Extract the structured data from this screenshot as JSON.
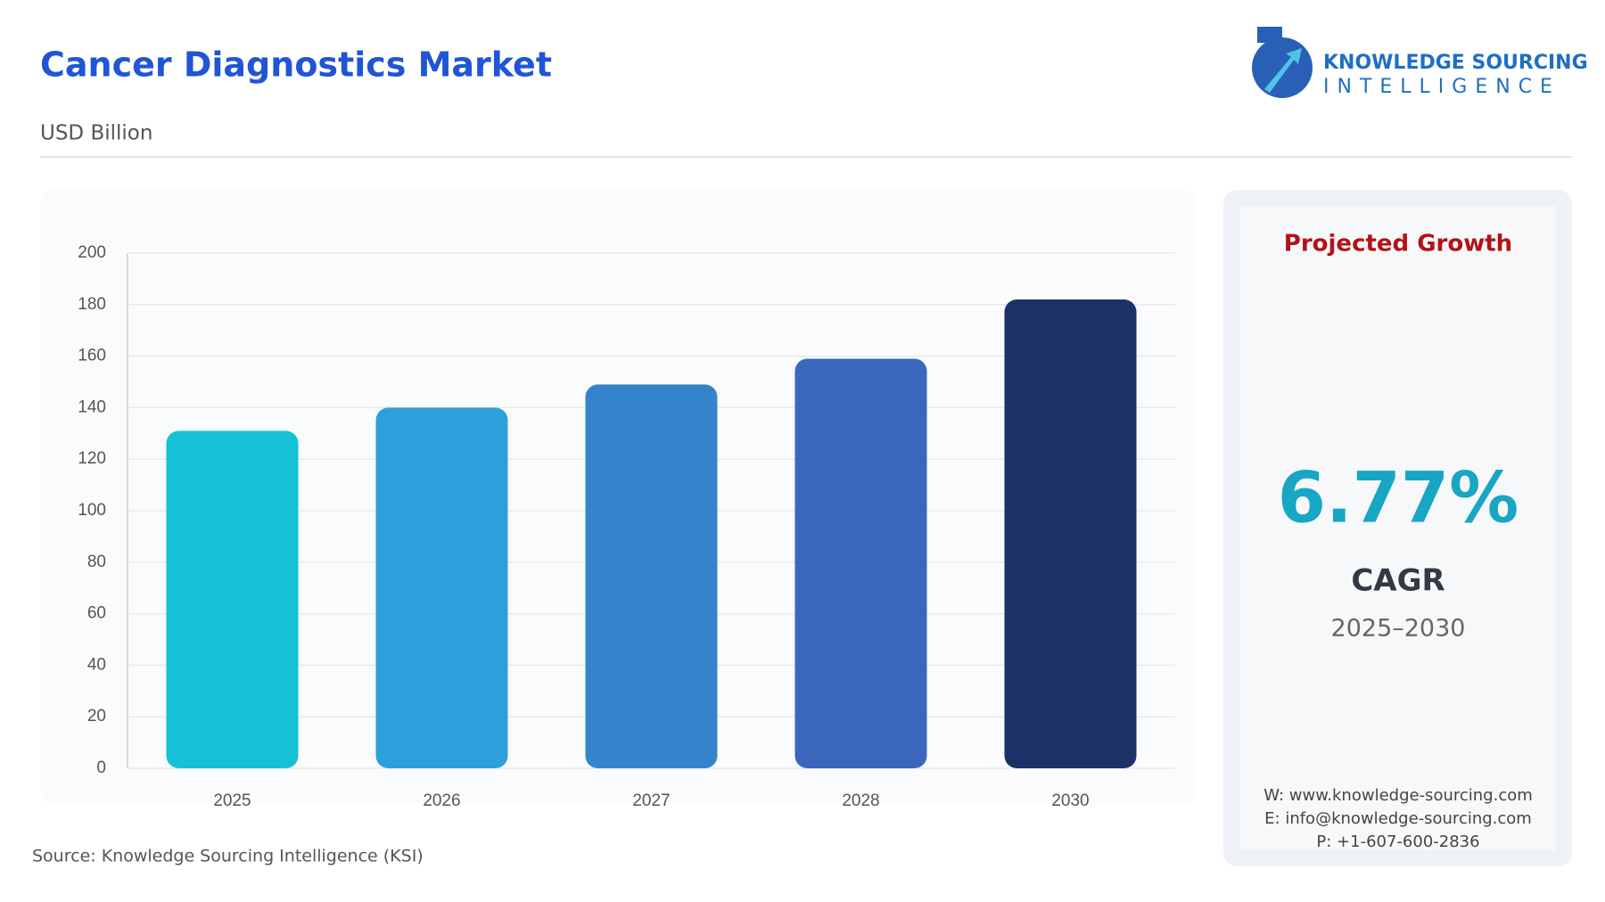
{
  "chart_data": {
    "type": "bar",
    "title": "Cancer Diagnostics Market",
    "subtitle": "USD Billion",
    "categories": [
      "2025",
      "2026",
      "2027",
      "2028",
      "2030"
    ],
    "values": [
      131,
      140,
      149,
      159,
      182
    ],
    "colors": [
      "#14c1d6",
      "#2d9fdb",
      "#3584cb",
      "#3a66bb",
      "#1c3166"
    ],
    "ylim": [
      0,
      200
    ],
    "yticks": [
      0,
      20,
      40,
      60,
      80,
      100,
      120,
      140,
      160,
      180,
      200
    ],
    "grid": true
  },
  "logo": {
    "line1": "KNOWLEDGE SOURCING",
    "line2": "INTELLIGENCE"
  },
  "panel": {
    "heading": "Projected Growth",
    "rate": "6.77%",
    "metric": "CAGR",
    "period": "2025–2030",
    "website": "W: www.knowledge-sourcing.com",
    "email": "E: info@knowledge-sourcing.com",
    "phone": "P: +1-607-600-2836"
  },
  "source": "Source: Knowledge Sourcing Intelligence (KSI)"
}
